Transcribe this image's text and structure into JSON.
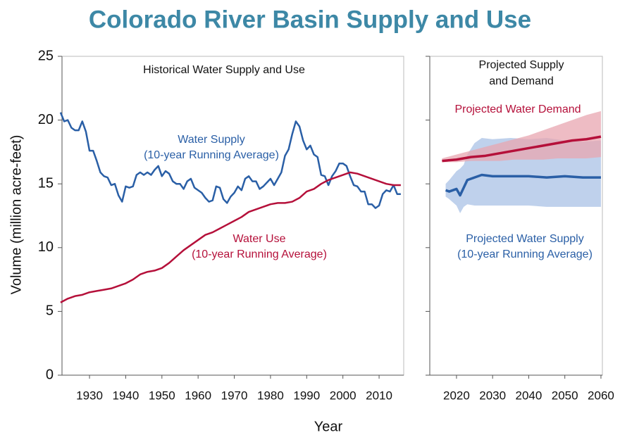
{
  "title": "Colorado River Basin Supply and Use",
  "xlabel": "Year",
  "ylabel": "Volume (million acre-feet)",
  "chart_data": [
    {
      "type": "line",
      "subtitle": [
        "Historical Water Supply and Use"
      ],
      "xlim": [
        1922.4,
        2016.8
      ],
      "ylim": [
        0,
        25
      ],
      "xticks": [
        1930,
        1940,
        1950,
        1960,
        1970,
        1980,
        1990,
        2000,
        2010
      ],
      "yticks": [
        0,
        5,
        10,
        15,
        20,
        25
      ],
      "series": [
        {
          "name": [
            "Water Supply",
            "(10-year Running Average)"
          ],
          "color": "#2a5fa6",
          "x": [
            1922,
            1923,
            1924,
            1925,
            1926,
            1927,
            1928,
            1929,
            1930,
            1931,
            1932,
            1933,
            1934,
            1935,
            1936,
            1937,
            1938,
            1939,
            1940,
            1941,
            1942,
            1943,
            1944,
            1945,
            1946,
            1947,
            1948,
            1949,
            1950,
            1951,
            1952,
            1953,
            1954,
            1955,
            1956,
            1957,
            1958,
            1959,
            1960,
            1961,
            1962,
            1963,
            1964,
            1965,
            1966,
            1967,
            1968,
            1969,
            1970,
            1971,
            1972,
            1973,
            1974,
            1975,
            1976,
            1977,
            1978,
            1979,
            1980,
            1981,
            1982,
            1983,
            1984,
            1985,
            1986,
            1987,
            1988,
            1989,
            1990,
            1991,
            1992,
            1993,
            1994,
            1995,
            1996,
            1997,
            1998,
            1999,
            2000,
            2001,
            2002,
            2003,
            2004,
            2005,
            2006,
            2007,
            2008,
            2009,
            2010,
            2011,
            2012,
            2013,
            2014,
            2015,
            2016
          ],
          "values": [
            20.6,
            19.9,
            20.0,
            19.4,
            19.2,
            19.2,
            19.9,
            19.1,
            17.6,
            17.6,
            16.8,
            15.9,
            15.6,
            15.5,
            14.9,
            15.0,
            14.1,
            13.6,
            14.8,
            14.7,
            14.8,
            15.7,
            15.9,
            15.7,
            15.9,
            15.7,
            16.1,
            16.4,
            15.6,
            16.0,
            15.8,
            15.2,
            15.0,
            15.0,
            14.6,
            15.2,
            15.4,
            14.7,
            14.5,
            14.3,
            13.9,
            13.6,
            13.7,
            14.8,
            14.7,
            13.8,
            13.5,
            14.0,
            14.3,
            14.8,
            14.5,
            15.4,
            15.6,
            15.2,
            15.2,
            14.6,
            14.8,
            15.1,
            15.4,
            14.9,
            15.4,
            15.9,
            17.2,
            17.7,
            18.9,
            19.9,
            19.5,
            18.4,
            17.7,
            18.0,
            17.3,
            17.1,
            15.7,
            15.6,
            14.9,
            15.6,
            16.0,
            16.6,
            16.6,
            16.4,
            15.6,
            14.9,
            14.8,
            14.4,
            14.4,
            13.4,
            13.4,
            13.1,
            13.3,
            14.2,
            14.5,
            14.4,
            14.9,
            14.2,
            14.2
          ]
        },
        {
          "name": [
            "Water Use",
            "(10-year Running Average)"
          ],
          "color": "#b5103a",
          "x": [
            1922,
            1924,
            1926,
            1928,
            1930,
            1932,
            1934,
            1936,
            1938,
            1940,
            1942,
            1944,
            1946,
            1948,
            1950,
            1952,
            1954,
            1956,
            1958,
            1960,
            1962,
            1964,
            1966,
            1968,
            1970,
            1972,
            1974,
            1976,
            1978,
            1980,
            1982,
            1984,
            1986,
            1988,
            1990,
            1992,
            1994,
            1996,
            1998,
            2000,
            2002,
            2004,
            2006,
            2008,
            2010,
            2012,
            2014,
            2016
          ],
          "values": [
            5.7,
            6.0,
            6.2,
            6.3,
            6.5,
            6.6,
            6.7,
            6.8,
            7.0,
            7.2,
            7.5,
            7.9,
            8.1,
            8.2,
            8.4,
            8.8,
            9.3,
            9.8,
            10.2,
            10.6,
            11.0,
            11.2,
            11.5,
            11.8,
            12.1,
            12.4,
            12.8,
            13.0,
            13.2,
            13.4,
            13.5,
            13.5,
            13.6,
            13.9,
            14.4,
            14.6,
            15.0,
            15.3,
            15.5,
            15.7,
            15.9,
            15.8,
            15.6,
            15.4,
            15.2,
            15.0,
            14.9,
            14.9
          ]
        }
      ]
    },
    {
      "type": "line",
      "subtitle": [
        "Projected Supply",
        "and Demand"
      ],
      "xlim": [
        2012.6,
        2060.4
      ],
      "ylim": [
        0,
        25
      ],
      "xticks": [
        2020,
        2030,
        2040,
        2050,
        2060
      ],
      "yticks": [
        0,
        5,
        10,
        15,
        20,
        25
      ],
      "series": [
        {
          "name": [
            "Projected Water Supply",
            "(10-year Running Average)"
          ],
          "color": "#2a5fa6",
          "band_color": "#a9c2e6",
          "x": [
            2017,
            2018,
            2020,
            2021,
            2022,
            2023,
            2025,
            2027,
            2030,
            2035,
            2040,
            2045,
            2050,
            2055,
            2060
          ],
          "values": [
            14.5,
            14.4,
            14.6,
            14.1,
            14.7,
            15.3,
            15.5,
            15.7,
            15.6,
            15.6,
            15.6,
            15.5,
            15.6,
            15.5,
            15.5
          ],
          "band_upper": [
            15.0,
            15.3,
            16.0,
            16.2,
            16.5,
            17.3,
            18.2,
            18.6,
            18.5,
            18.6,
            18.5,
            18.6,
            18.4,
            18.3,
            18.4
          ],
          "band_lower": [
            14.0,
            13.8,
            13.3,
            12.7,
            13.2,
            13.4,
            13.3,
            13.3,
            13.3,
            13.3,
            13.3,
            13.2,
            13.2,
            13.2,
            13.2
          ]
        },
        {
          "name": [
            "Projected Water Demand"
          ],
          "color": "#b5103a",
          "band_color": "#e8a6b0",
          "x": [
            2016,
            2020,
            2024,
            2028,
            2032,
            2036,
            2040,
            2044,
            2048,
            2052,
            2056,
            2060
          ],
          "values": [
            16.8,
            16.9,
            17.1,
            17.2,
            17.4,
            17.6,
            17.8,
            18.0,
            18.2,
            18.4,
            18.5,
            18.7
          ],
          "band_upper": [
            17.0,
            17.3,
            17.6,
            17.9,
            18.2,
            18.5,
            18.8,
            19.2,
            19.6,
            20.0,
            20.4,
            20.7
          ],
          "band_lower": [
            16.7,
            16.7,
            16.8,
            16.8,
            16.8,
            16.9,
            16.9,
            16.9,
            17.0,
            17.0,
            17.0,
            17.1
          ]
        }
      ]
    }
  ]
}
